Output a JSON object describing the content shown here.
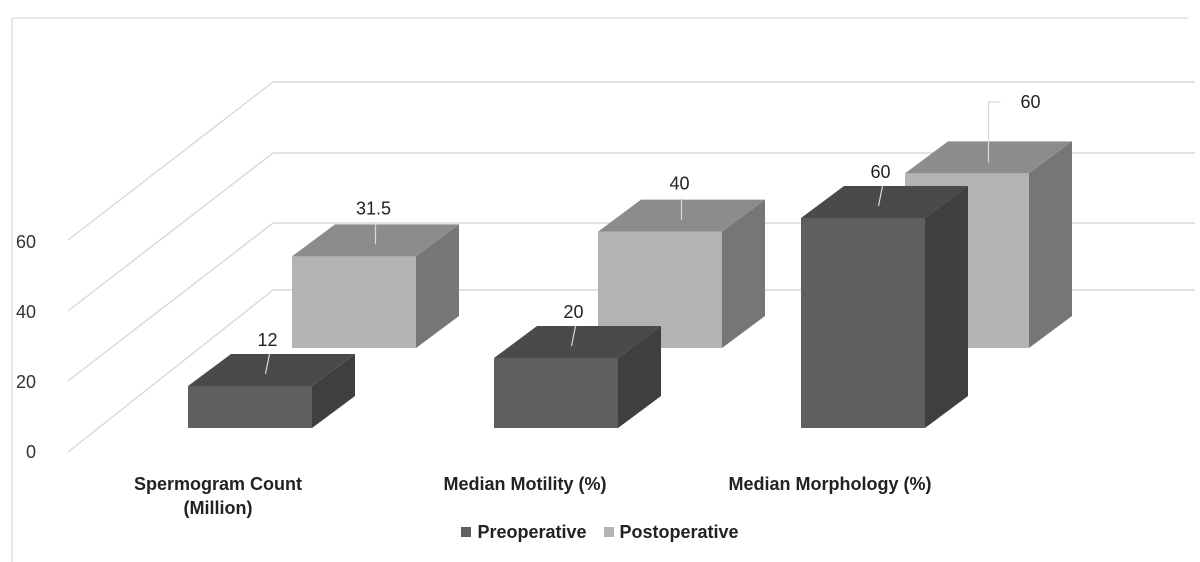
{
  "chart_data": {
    "type": "bar",
    "categories": [
      "Spermogram Count (Million)",
      "Median Motility (%)",
      "Median Morphology (%)"
    ],
    "category_lines": [
      [
        "Spermogram Count",
        "(Million)"
      ],
      [
        "Median Motility (%)"
      ],
      [
        "Median Morphology (%)"
      ]
    ],
    "series": [
      {
        "name": "Preoperative",
        "values": [
          12,
          20,
          60
        ]
      },
      {
        "name": "Postoperative",
        "values": [
          31.5,
          40,
          60
        ]
      }
    ],
    "data_labels": [
      [
        "12",
        "20",
        "60"
      ],
      [
        "31.5",
        "40",
        "60"
      ]
    ],
    "y_ticks": [
      "0",
      "20",
      "40",
      "60"
    ],
    "ylim": [
      0,
      60
    ],
    "grid": true,
    "legend_position": "bottom-center",
    "three_d": true
  },
  "colors": {
    "preoperative": {
      "front": "#5f5f5f",
      "side": "#3f3f3f",
      "top": "#4a4a4a"
    },
    "postoperative": {
      "front": "#b3b3b3",
      "side": "#767676",
      "top": "#8c8c8c"
    },
    "grid": "#d9d9d9",
    "text": "#222222"
  }
}
